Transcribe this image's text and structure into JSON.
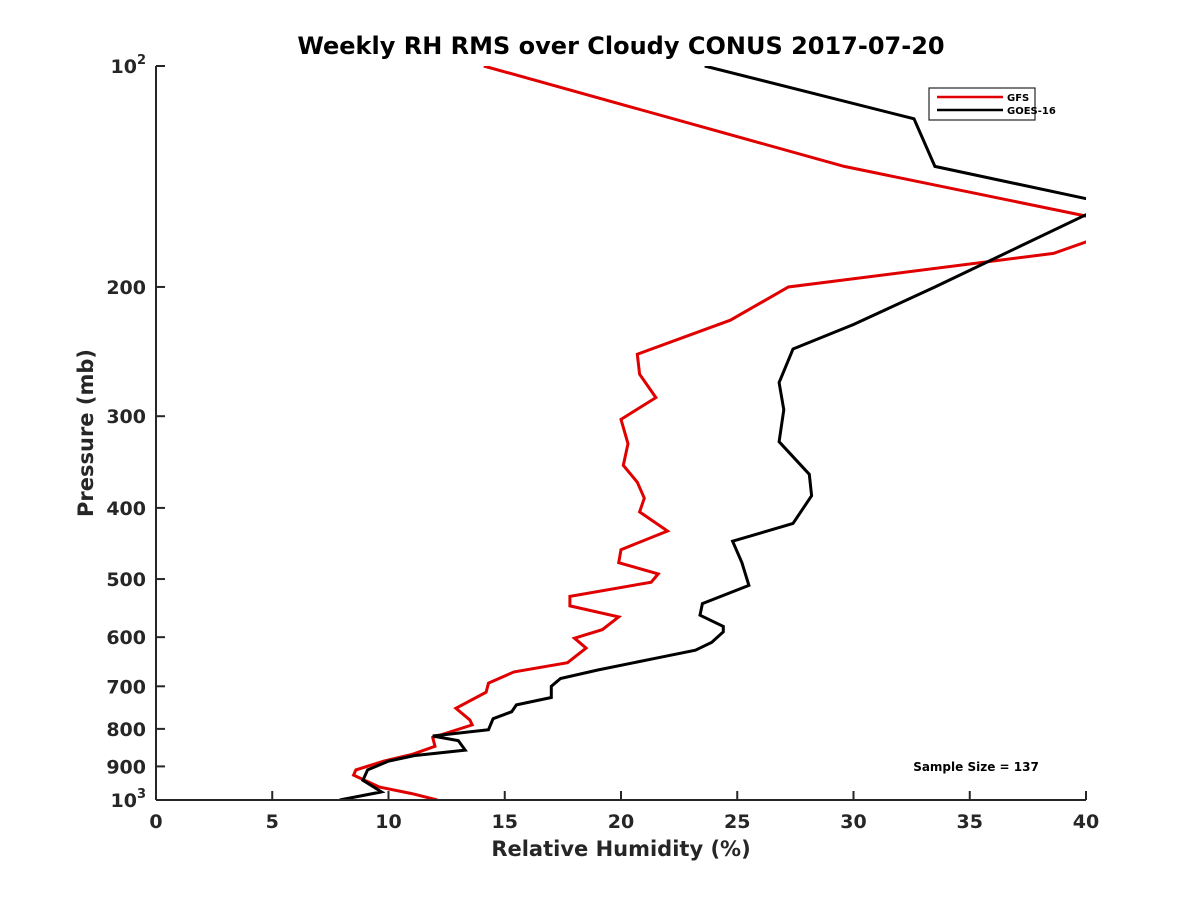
{
  "chart_data": {
    "type": "line",
    "title": "Weekly RH RMS over Cloudy CONUS 2017-07-20",
    "xlabel": "Relative Humidity (%)",
    "ylabel": "Pressure (mb)",
    "xlim": [
      0,
      40
    ],
    "ylim": [
      100,
      1000
    ],
    "y_scale": "log",
    "y_reversed": true,
    "x_ticks": [
      0,
      5,
      10,
      15,
      20,
      25,
      30,
      35,
      40
    ],
    "x_tick_labels": [
      "0",
      "5",
      "10",
      "15",
      "20",
      "25",
      "30",
      "35",
      "40"
    ],
    "y_ticks": [
      {
        "value": 100,
        "base": "10",
        "exp": "2"
      },
      {
        "value": 200,
        "base": "200",
        "exp": ""
      },
      {
        "value": 300,
        "base": "300",
        "exp": ""
      },
      {
        "value": 400,
        "base": "400",
        "exp": ""
      },
      {
        "value": 500,
        "base": "500",
        "exp": ""
      },
      {
        "value": 600,
        "base": "600",
        "exp": ""
      },
      {
        "value": 700,
        "base": "700",
        "exp": ""
      },
      {
        "value": 800,
        "base": "800",
        "exp": ""
      },
      {
        "value": 900,
        "base": "900",
        "exp": ""
      },
      {
        "value": 1000,
        "base": "10",
        "exp": "3"
      }
    ],
    "grid": false,
    "legend_position": "top-right",
    "series": [
      {
        "name": "GFS",
        "color": "#e00000",
        "points": [
          [
            14.1,
            100
          ],
          [
            29.6,
            137
          ],
          [
            42.0,
            165
          ],
          [
            38.6,
            180
          ],
          [
            27.2,
            200
          ],
          [
            24.7,
            222
          ],
          [
            20.7,
            247
          ],
          [
            20.8,
            263
          ],
          [
            21.5,
            283
          ],
          [
            20.0,
            303
          ],
          [
            20.3,
            327
          ],
          [
            20.1,
            350
          ],
          [
            20.7,
            369
          ],
          [
            21.0,
            388
          ],
          [
            20.8,
            405
          ],
          [
            22.0,
            430
          ],
          [
            20.0,
            456
          ],
          [
            19.9,
            475
          ],
          [
            21.6,
            492
          ],
          [
            21.3,
            505
          ],
          [
            17.8,
            528
          ],
          [
            17.8,
            544
          ],
          [
            19.9,
            563
          ],
          [
            19.2,
            586
          ],
          [
            18.0,
            602
          ],
          [
            18.5,
            621
          ],
          [
            17.7,
            650
          ],
          [
            15.4,
            669
          ],
          [
            14.3,
            693
          ],
          [
            14.2,
            713
          ],
          [
            12.9,
            750
          ],
          [
            13.5,
            778
          ],
          [
            13.6,
            790
          ],
          [
            11.9,
            822
          ],
          [
            12.0,
            845
          ],
          [
            11.0,
            867
          ],
          [
            9.8,
            885
          ],
          [
            8.6,
            910
          ],
          [
            8.5,
            925
          ],
          [
            9.6,
            960
          ],
          [
            11.0,
            980
          ],
          [
            12.1,
            1000
          ]
        ]
      },
      {
        "name": "GOES-16",
        "color": "#000000",
        "points": [
          [
            23.6,
            100
          ],
          [
            32.6,
            118
          ],
          [
            33.5,
            137
          ],
          [
            41.0,
            154
          ],
          [
            33.5,
            200
          ],
          [
            30.0,
            225
          ],
          [
            27.4,
            243
          ],
          [
            26.8,
            270
          ],
          [
            27.0,
            294
          ],
          [
            26.8,
            325
          ],
          [
            28.1,
            360
          ],
          [
            28.2,
            385
          ],
          [
            27.4,
            420
          ],
          [
            24.8,
            444
          ],
          [
            25.2,
            475
          ],
          [
            25.5,
            510
          ],
          [
            23.5,
            540
          ],
          [
            23.4,
            560
          ],
          [
            24.4,
            580
          ],
          [
            24.4,
            590
          ],
          [
            23.9,
            610
          ],
          [
            23.2,
            625
          ],
          [
            21.4,
            642
          ],
          [
            19.0,
            665
          ],
          [
            17.4,
            683
          ],
          [
            17.0,
            700
          ],
          [
            17.0,
            725
          ],
          [
            15.5,
            742
          ],
          [
            15.3,
            758
          ],
          [
            14.5,
            775
          ],
          [
            14.3,
            802
          ],
          [
            11.9,
            818
          ],
          [
            13.0,
            830
          ],
          [
            13.3,
            855
          ],
          [
            11.1,
            870
          ],
          [
            10.0,
            885
          ],
          [
            9.1,
            910
          ],
          [
            8.9,
            940
          ],
          [
            9.7,
            975
          ],
          [
            7.9,
            1000
          ]
        ]
      }
    ],
    "annotations": [
      "Sample Size = 137"
    ]
  }
}
